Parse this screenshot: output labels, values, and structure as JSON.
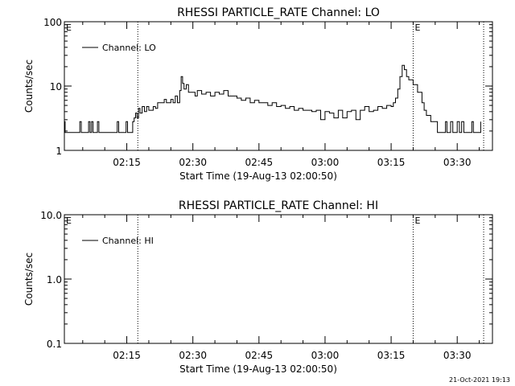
{
  "footer": {
    "timestamp": "21-Oct-2021 19:13"
  },
  "chart_data": [
    {
      "type": "line",
      "title": "RHESSI PARTICLE_RATE Channel: LO",
      "xlabel": "Start Time (19-Aug-13 02:00:50)",
      "ylabel": "Counts/sec",
      "yscale": "log",
      "xlim": [
        "02:00:50",
        "03:38:00"
      ],
      "ylim": [
        1,
        100
      ],
      "yticks": [
        "1",
        "10",
        "100"
      ],
      "xticks": [
        "02:15",
        "02:30",
        "02:45",
        "03:00",
        "03:15",
        "03:30"
      ],
      "legend": {
        "position": "top-left"
      },
      "markers": [
        {
          "time": "02:17:30",
          "label": ""
        },
        {
          "time": "03:20:00",
          "label": "E"
        },
        {
          "time": "03:36:00",
          "label": ""
        }
      ],
      "corner_label": "E",
      "grid": false,
      "series": [
        {
          "name": "Channel: LO",
          "points": [
            [
              "02:00:50",
              2.8
            ],
            [
              "02:01:00",
              1.9
            ],
            [
              "02:04:00",
              1.9
            ],
            [
              "02:04:20",
              2.8
            ],
            [
              "02:04:40",
              1.9
            ],
            [
              "02:06:00",
              1.9
            ],
            [
              "02:06:20",
              2.8
            ],
            [
              "02:06:40",
              1.9
            ],
            [
              "02:07:00",
              2.8
            ],
            [
              "02:07:20",
              1.9
            ],
            [
              "02:08:00",
              1.9
            ],
            [
              "02:08:20",
              2.8
            ],
            [
              "02:08:40",
              1.9
            ],
            [
              "02:12:30",
              1.9
            ],
            [
              "02:12:50",
              2.8
            ],
            [
              "02:13:10",
              1.9
            ],
            [
              "02:14:30",
              1.9
            ],
            [
              "02:14:50",
              2.8
            ],
            [
              "02:15:10",
              1.9
            ],
            [
              "02:16:00",
              1.9
            ],
            [
              "02:16:20",
              2.8
            ],
            [
              "02:16:40",
              3.2
            ],
            [
              "02:17:00",
              3.8
            ],
            [
              "02:17:20",
              3.2
            ],
            [
              "02:17:40",
              4.5
            ],
            [
              "02:18:00",
              3.8
            ],
            [
              "02:18:30",
              4.8
            ],
            [
              "02:19:00",
              4.0
            ],
            [
              "02:19:30",
              4.8
            ],
            [
              "02:20:00",
              4.2
            ],
            [
              "02:21:00",
              4.8
            ],
            [
              "02:21:30",
              4.5
            ],
            [
              "02:22:00",
              5.5
            ],
            [
              "02:23:00",
              5.5
            ],
            [
              "02:23:30",
              6.2
            ],
            [
              "02:24:00",
              5.5
            ],
            [
              "02:25:00",
              6.2
            ],
            [
              "02:25:30",
              5.5
            ],
            [
              "02:26:00",
              7.0
            ],
            [
              "02:26:30",
              5.5
            ],
            [
              "02:27:00",
              8.5
            ],
            [
              "02:27:20",
              14.0
            ],
            [
              "02:27:40",
              11.0
            ],
            [
              "02:28:00",
              9.0
            ],
            [
              "02:28:30",
              10.5
            ],
            [
              "02:29:00",
              8.0
            ],
            [
              "02:30:00",
              8.0
            ],
            [
              "02:30:30",
              7.0
            ],
            [
              "02:31:00",
              8.5
            ],
            [
              "02:32:00",
              7.5
            ],
            [
              "02:33:00",
              8.0
            ],
            [
              "02:34:00",
              7.0
            ],
            [
              "02:35:00",
              8.0
            ],
            [
              "02:36:00",
              7.5
            ],
            [
              "02:37:00",
              8.5
            ],
            [
              "02:38:00",
              7.0
            ],
            [
              "02:39:00",
              7.0
            ],
            [
              "02:40:00",
              6.5
            ],
            [
              "02:41:00",
              6.0
            ],
            [
              "02:42:00",
              6.5
            ],
            [
              "02:43:00",
              5.5
            ],
            [
              "02:44:00",
              6.0
            ],
            [
              "02:45:00",
              5.5
            ],
            [
              "02:46:00",
              5.5
            ],
            [
              "02:47:00",
              5.0
            ],
            [
              "02:48:00",
              5.5
            ],
            [
              "02:49:00",
              4.8
            ],
            [
              "02:50:00",
              5.0
            ],
            [
              "02:51:00",
              4.5
            ],
            [
              "02:52:00",
              4.8
            ],
            [
              "02:53:00",
              4.2
            ],
            [
              "02:54:00",
              4.5
            ],
            [
              "02:55:00",
              4.2
            ],
            [
              "02:56:00",
              4.2
            ],
            [
              "02:57:00",
              4.0
            ],
            [
              "02:58:00",
              4.2
            ],
            [
              "02:59:00",
              3.0
            ],
            [
              "03:00:00",
              4.0
            ],
            [
              "03:01:00",
              3.8
            ],
            [
              "03:02:00",
              3.2
            ],
            [
              "03:03:00",
              4.2
            ],
            [
              "03:04:00",
              3.2
            ],
            [
              "03:05:00",
              4.0
            ],
            [
              "03:06:00",
              4.2
            ],
            [
              "03:07:00",
              3.0
            ],
            [
              "03:08:00",
              4.2
            ],
            [
              "03:09:00",
              4.8
            ],
            [
              "03:10:00",
              4.0
            ],
            [
              "03:11:00",
              4.2
            ],
            [
              "03:12:00",
              4.8
            ],
            [
              "03:13:00",
              4.5
            ],
            [
              "03:14:00",
              5.0
            ],
            [
              "03:15:00",
              4.8
            ],
            [
              "03:15:30",
              5.5
            ],
            [
              "03:16:00",
              6.5
            ],
            [
              "03:16:30",
              9.0
            ],
            [
              "03:17:00",
              14.0
            ],
            [
              "03:17:30",
              21.0
            ],
            [
              "03:18:00",
              18.0
            ],
            [
              "03:18:30",
              14.0
            ],
            [
              "03:19:00",
              12.5
            ],
            [
              "03:20:00",
              10.5
            ],
            [
              "03:21:00",
              8.0
            ],
            [
              "03:22:00",
              5.5
            ],
            [
              "03:22:30",
              4.2
            ],
            [
              "03:23:00",
              3.5
            ],
            [
              "03:24:00",
              2.8
            ],
            [
              "03:25:00",
              2.8
            ],
            [
              "03:25:30",
              1.9
            ],
            [
              "03:27:00",
              1.9
            ],
            [
              "03:27:20",
              2.8
            ],
            [
              "03:27:40",
              1.9
            ],
            [
              "03:28:30",
              2.8
            ],
            [
              "03:29:00",
              1.9
            ],
            [
              "03:30:00",
              2.8
            ],
            [
              "03:30:30",
              1.9
            ],
            [
              "03:31:00",
              2.8
            ],
            [
              "03:31:30",
              1.9
            ],
            [
              "03:33:00",
              1.9
            ],
            [
              "03:33:20",
              2.8
            ],
            [
              "03:33:40",
              1.9
            ],
            [
              "03:35:00",
              1.9
            ],
            [
              "03:35:20",
              2.8
            ]
          ]
        }
      ]
    },
    {
      "type": "line",
      "title": "RHESSI PARTICLE_RATE Channel: HI",
      "xlabel": "Start Time (19-Aug-13 02:00:50)",
      "ylabel": "Counts/sec",
      "yscale": "log",
      "xlim": [
        "02:00:50",
        "03:38:00"
      ],
      "ylim": [
        0.1,
        10
      ],
      "yticks": [
        "0.1",
        "1.0",
        "10.0"
      ],
      "xticks": [
        "02:15",
        "02:30",
        "02:45",
        "03:00",
        "03:15",
        "03:30"
      ],
      "legend": {
        "position": "top-left"
      },
      "markers": [
        {
          "time": "02:17:30",
          "label": ""
        },
        {
          "time": "03:20:00",
          "label": "E"
        },
        {
          "time": "03:36:00",
          "label": ""
        }
      ],
      "corner_label": "E",
      "grid": false,
      "series": [
        {
          "name": "Channel: HI",
          "points": []
        }
      ]
    }
  ]
}
